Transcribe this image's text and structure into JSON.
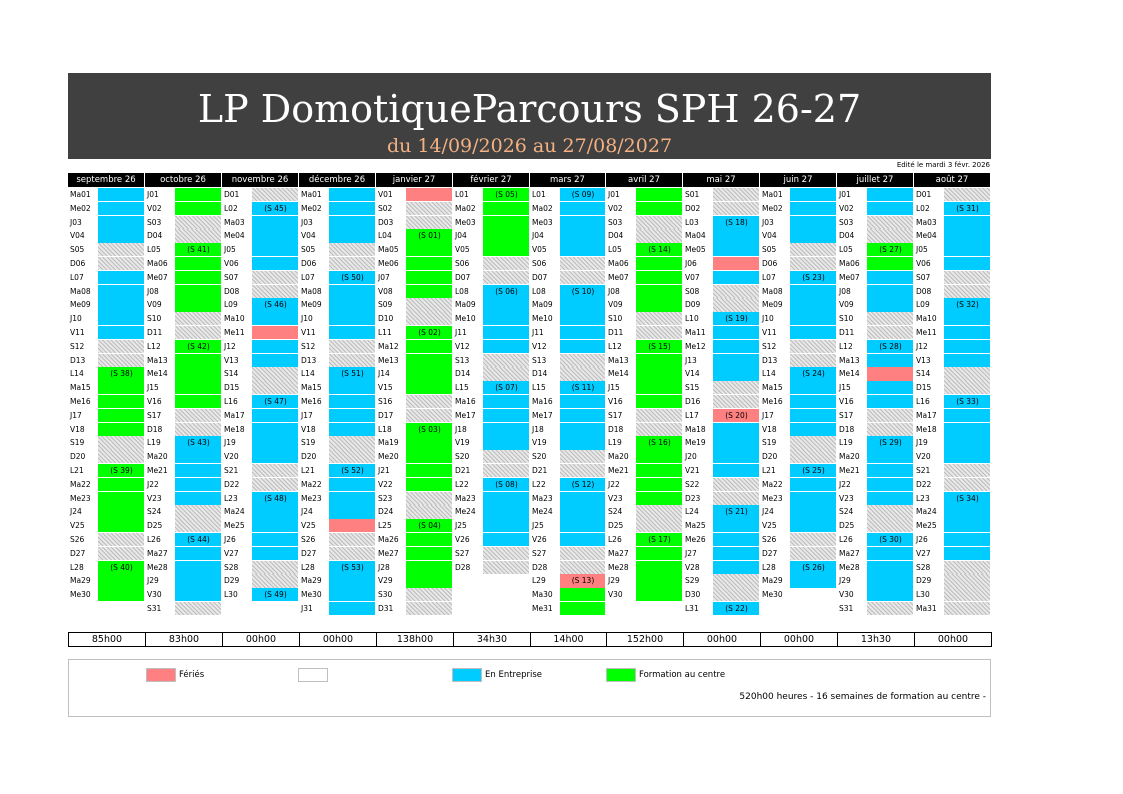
{
  "header": {
    "title": "LP DomotiqueParcours SPH 26-27",
    "subtitle": "du 14/09/2026 au 27/08/2027",
    "edit_date": "Edité le mardi 3 févr. 2026"
  },
  "colors": {
    "entreprise": "#00ccff",
    "formation": "#00ff00",
    "feries": "#ff8080",
    "banner": "#404040",
    "weekend_hatch": "#bdbdbd"
  },
  "months": [
    {
      "name": "septembre 26",
      "total": "85h00",
      "days": [
        "Ma01",
        "Me02",
        "J03",
        "V04",
        "S05",
        "D06",
        "L07",
        "Ma08",
        "Me09",
        "J10",
        "V11",
        "S12",
        "D13",
        "L14",
        "Ma15",
        "Me16",
        "J17",
        "V18",
        "S19",
        "D20",
        "L21",
        "Ma22",
        "Me23",
        "J24",
        "V25",
        "S26",
        "D27",
        "L28",
        "Ma29",
        "Me30"
      ],
      "status": [
        "e",
        "e",
        "e",
        "e",
        "w",
        "w",
        "e",
        "e",
        "e",
        "e",
        "e",
        "w",
        "w",
        "f",
        "f",
        "f",
        "f",
        "f",
        "w",
        "w",
        "f",
        "f",
        "f",
        "f",
        "f",
        "w",
        "w",
        "f",
        "f",
        "f"
      ],
      "weeks": [
        {
          "day": 14,
          "label": "(S 38)"
        },
        {
          "day": 21,
          "label": "(S 39)"
        },
        {
          "day": 28,
          "label": "(S 40)"
        }
      ]
    },
    {
      "name": "octobre 26",
      "total": "83h00",
      "days": [
        "J01",
        "V02",
        "S03",
        "D04",
        "L05",
        "Ma06",
        "Me07",
        "J08",
        "V09",
        "S10",
        "D11",
        "L12",
        "Ma13",
        "Me14",
        "J15",
        "V16",
        "S17",
        "D18",
        "L19",
        "Ma20",
        "Me21",
        "J22",
        "V23",
        "S24",
        "D25",
        "L26",
        "Ma27",
        "Me28",
        "J29",
        "V30",
        "S31"
      ],
      "status": [
        "f",
        "f",
        "w",
        "w",
        "f",
        "f",
        "f",
        "f",
        "f",
        "w",
        "w",
        "f",
        "f",
        "f",
        "f",
        "f",
        "w",
        "w",
        "e",
        "e",
        "e",
        "e",
        "e",
        "w",
        "w",
        "e",
        "e",
        "e",
        "e",
        "e",
        "w"
      ],
      "weeks": [
        {
          "day": 5,
          "label": "(S 41)"
        },
        {
          "day": 12,
          "label": "(S 42)"
        },
        {
          "day": 19,
          "label": "(S 43)"
        },
        {
          "day": 26,
          "label": "(S 44)"
        }
      ]
    },
    {
      "name": "novembre 26",
      "total": "00h00",
      "days": [
        "D01",
        "L02",
        "Ma03",
        "Me04",
        "J05",
        "V06",
        "S07",
        "D08",
        "L09",
        "Ma10",
        "Me11",
        "J12",
        "V13",
        "S14",
        "D15",
        "L16",
        "Ma17",
        "Me18",
        "J19",
        "V20",
        "S21",
        "D22",
        "L23",
        "Ma24",
        "Me25",
        "J26",
        "V27",
        "S28",
        "D29",
        "L30"
      ],
      "status": [
        "w",
        "e",
        "e",
        "e",
        "e",
        "e",
        "w",
        "w",
        "e",
        "e",
        "h",
        "e",
        "e",
        "w",
        "w",
        "e",
        "e",
        "e",
        "e",
        "e",
        "w",
        "w",
        "e",
        "e",
        "e",
        "e",
        "e",
        "w",
        "w",
        "e"
      ],
      "weeks": [
        {
          "day": 2,
          "label": "(S 45)"
        },
        {
          "day": 9,
          "label": "(S 46)"
        },
        {
          "day": 16,
          "label": "(S 47)"
        },
        {
          "day": 23,
          "label": "(S 48)"
        },
        {
          "day": 30,
          "label": "(S 49)"
        }
      ]
    },
    {
      "name": "décembre 26",
      "total": "00h00",
      "days": [
        "Ma01",
        "Me02",
        "J03",
        "V04",
        "S05",
        "D06",
        "L07",
        "Ma08",
        "Me09",
        "J10",
        "V11",
        "S12",
        "D13",
        "L14",
        "Ma15",
        "Me16",
        "J17",
        "V18",
        "S19",
        "D20",
        "L21",
        "Ma22",
        "Me23",
        "J24",
        "V25",
        "S26",
        "D27",
        "L28",
        "Ma29",
        "Me30",
        "J31"
      ],
      "status": [
        "e",
        "e",
        "e",
        "e",
        "w",
        "w",
        "e",
        "e",
        "e",
        "e",
        "e",
        "w",
        "w",
        "e",
        "e",
        "e",
        "e",
        "e",
        "w",
        "w",
        "e",
        "e",
        "e",
        "e",
        "h",
        "w",
        "w",
        "e",
        "e",
        "e",
        "e"
      ],
      "weeks": [
        {
          "day": 7,
          "label": "(S 50)"
        },
        {
          "day": 14,
          "label": "(S 51)"
        },
        {
          "day": 21,
          "label": "(S 52)"
        },
        {
          "day": 28,
          "label": "(S 53)"
        }
      ]
    },
    {
      "name": "janvier 27",
      "total": "138h00",
      "days": [
        "V01",
        "S02",
        "D03",
        "L04",
        "Ma05",
        "Me06",
        "J07",
        "V08",
        "S09",
        "D10",
        "L11",
        "Ma12",
        "Me13",
        "J14",
        "V15",
        "S16",
        "D17",
        "L18",
        "Ma19",
        "Me20",
        "J21",
        "V22",
        "S23",
        "D24",
        "L25",
        "Ma26",
        "Me27",
        "J28",
        "V29",
        "S30",
        "D31"
      ],
      "status": [
        "h",
        "w",
        "w",
        "f",
        "f",
        "f",
        "f",
        "f",
        "w",
        "w",
        "f",
        "f",
        "f",
        "f",
        "f",
        "w",
        "w",
        "f",
        "f",
        "f",
        "f",
        "f",
        "w",
        "w",
        "f",
        "f",
        "f",
        "f",
        "f",
        "w",
        "w"
      ],
      "weeks": [
        {
          "day": 4,
          "label": "(S 01)"
        },
        {
          "day": 11,
          "label": "(S 02)"
        },
        {
          "day": 18,
          "label": "(S 03)"
        },
        {
          "day": 25,
          "label": "(S 04)"
        }
      ]
    },
    {
      "name": "février 27",
      "total": "34h30",
      "days": [
        "L01",
        "Ma02",
        "Me03",
        "J04",
        "V05",
        "S06",
        "D07",
        "L08",
        "Ma09",
        "Me10",
        "J11",
        "V12",
        "S13",
        "D14",
        "L15",
        "Ma16",
        "Me17",
        "J18",
        "V19",
        "S20",
        "D21",
        "L22",
        "Ma23",
        "Me24",
        "J25",
        "V26",
        "S27",
        "D28"
      ],
      "status": [
        "f",
        "f",
        "f",
        "f",
        "f",
        "w",
        "w",
        "e",
        "e",
        "e",
        "e",
        "e",
        "w",
        "w",
        "e",
        "e",
        "e",
        "e",
        "e",
        "w",
        "w",
        "e",
        "e",
        "e",
        "e",
        "e",
        "w",
        "w"
      ],
      "weeks": [
        {
          "day": 1,
          "label": "(S 05)"
        },
        {
          "day": 8,
          "label": "(S 06)"
        },
        {
          "day": 15,
          "label": "(S 07)"
        },
        {
          "day": 22,
          "label": "(S 08)"
        }
      ]
    },
    {
      "name": "mars 27",
      "total": "14h00",
      "days": [
        "L01",
        "Ma02",
        "Me03",
        "J04",
        "V05",
        "S06",
        "D07",
        "L08",
        "Ma09",
        "Me10",
        "J11",
        "V12",
        "S13",
        "D14",
        "L15",
        "Ma16",
        "Me17",
        "J18",
        "V19",
        "S20",
        "D21",
        "L22",
        "Ma23",
        "Me24",
        "J25",
        "V26",
        "S27",
        "D28",
        "L29",
        "Ma30",
        "Me31"
      ],
      "status": [
        "e",
        "e",
        "e",
        "e",
        "e",
        "w",
        "w",
        "e",
        "e",
        "e",
        "e",
        "e",
        "w",
        "w",
        "e",
        "e",
        "e",
        "e",
        "e",
        "w",
        "w",
        "e",
        "e",
        "e",
        "e",
        "e",
        "w",
        "w",
        "h",
        "f",
        "f"
      ],
      "weeks": [
        {
          "day": 1,
          "label": "(S 09)"
        },
        {
          "day": 8,
          "label": "(S 10)"
        },
        {
          "day": 15,
          "label": "(S 11)"
        },
        {
          "day": 22,
          "label": "(S 12)"
        },
        {
          "day": 29,
          "label": "(S 13)"
        }
      ]
    },
    {
      "name": "avril 27",
      "total": "152h00",
      "days": [
        "J01",
        "V02",
        "S03",
        "D04",
        "L05",
        "Ma06",
        "Me07",
        "J08",
        "V09",
        "S10",
        "D11",
        "L12",
        "Ma13",
        "Me14",
        "J15",
        "V16",
        "S17",
        "D18",
        "L19",
        "Ma20",
        "Me21",
        "J22",
        "V23",
        "S24",
        "D25",
        "L26",
        "Ma27",
        "Me28",
        "J29",
        "V30"
      ],
      "status": [
        "f",
        "f",
        "w",
        "w",
        "f",
        "f",
        "f",
        "f",
        "f",
        "w",
        "w",
        "f",
        "f",
        "f",
        "f",
        "f",
        "w",
        "w",
        "f",
        "f",
        "f",
        "f",
        "f",
        "w",
        "w",
        "f",
        "f",
        "f",
        "f",
        "f"
      ],
      "weeks": [
        {
          "day": 5,
          "label": "(S 14)"
        },
        {
          "day": 12,
          "label": "(S 15)"
        },
        {
          "day": 19,
          "label": "(S 16)"
        },
        {
          "day": 26,
          "label": "(S 17)"
        }
      ]
    },
    {
      "name": "mai 27",
      "total": "00h00",
      "days": [
        "S01",
        "D02",
        "L03",
        "Ma04",
        "Me05",
        "J06",
        "V07",
        "S08",
        "D09",
        "L10",
        "Ma11",
        "Me12",
        "J13",
        "V14",
        "S15",
        "D16",
        "L17",
        "Ma18",
        "Me19",
        "J20",
        "V21",
        "S22",
        "D23",
        "L24",
        "Ma25",
        "Me26",
        "J27",
        "V28",
        "S29",
        "D30",
        "L31"
      ],
      "status": [
        "w",
        "w",
        "e",
        "e",
        "e",
        "h",
        "e",
        "w",
        "w",
        "e",
        "e",
        "e",
        "e",
        "e",
        "w",
        "w",
        "h",
        "e",
        "e",
        "e",
        "e",
        "w",
        "w",
        "e",
        "e",
        "e",
        "e",
        "e",
        "w",
        "w",
        "e"
      ],
      "weeks": [
        {
          "day": 3,
          "label": "(S 18)"
        },
        {
          "day": 10,
          "label": "(S 19)"
        },
        {
          "day": 17,
          "label": "(S 20)"
        },
        {
          "day": 24,
          "label": "(S 21)"
        },
        {
          "day": 31,
          "label": "(S 22)"
        }
      ]
    },
    {
      "name": "juin 27",
      "total": "00h00",
      "days": [
        "Ma01",
        "Me02",
        "J03",
        "V04",
        "S05",
        "D06",
        "L07",
        "Ma08",
        "Me09",
        "J10",
        "V11",
        "S12",
        "D13",
        "L14",
        "Ma15",
        "Me16",
        "J17",
        "V18",
        "S19",
        "D20",
        "L21",
        "Ma22",
        "Me23",
        "J24",
        "V25",
        "S26",
        "D27",
        "L28",
        "Ma29",
        "Me30"
      ],
      "status": [
        "e",
        "e",
        "e",
        "e",
        "w",
        "w",
        "e",
        "e",
        "e",
        "e",
        "e",
        "w",
        "w",
        "e",
        "e",
        "e",
        "e",
        "e",
        "w",
        "w",
        "e",
        "e",
        "e",
        "e",
        "e",
        "w",
        "w",
        "e",
        "e",
        "b"
      ],
      "weeks": [
        {
          "day": 7,
          "label": "(S 23)"
        },
        {
          "day": 14,
          "label": "(S 24)"
        },
        {
          "day": 21,
          "label": "(S 25)"
        },
        {
          "day": 28,
          "label": "(S 26)"
        }
      ]
    },
    {
      "name": "juillet 27",
      "total": "13h30",
      "days": [
        "J01",
        "V02",
        "S03",
        "D04",
        "L05",
        "Ma06",
        "Me07",
        "J08",
        "V09",
        "S10",
        "D11",
        "L12",
        "Ma13",
        "Me14",
        "J15",
        "V16",
        "S17",
        "D18",
        "L19",
        "Ma20",
        "Me21",
        "J22",
        "V23",
        "S24",
        "D25",
        "L26",
        "Ma27",
        "Me28",
        "J29",
        "V30",
        "S31"
      ],
      "status": [
        "e",
        "e",
        "w",
        "w",
        "f",
        "f",
        "e",
        "e",
        "e",
        "w",
        "w",
        "e",
        "e",
        "h",
        "e",
        "e",
        "w",
        "w",
        "e",
        "e",
        "e",
        "e",
        "e",
        "w",
        "w",
        "e",
        "e",
        "e",
        "e",
        "e",
        "w"
      ],
      "weeks": [
        {
          "day": 5,
          "label": "(S 27)"
        },
        {
          "day": 12,
          "label": "(S 28)"
        },
        {
          "day": 19,
          "label": "(S 29)"
        },
        {
          "day": 26,
          "label": "(S 30)"
        }
      ]
    },
    {
      "name": "août 27",
      "total": "00h00",
      "days": [
        "D01",
        "L02",
        "Ma03",
        "Me04",
        "J05",
        "V06",
        "S07",
        "D08",
        "L09",
        "Ma10",
        "Me11",
        "J12",
        "V13",
        "S14",
        "D15",
        "L16",
        "Ma17",
        "Me18",
        "J19",
        "V20",
        "S21",
        "D22",
        "L23",
        "Ma24",
        "Me25",
        "J26",
        "V27",
        "S28",
        "D29",
        "L30",
        "Ma31"
      ],
      "status": [
        "w",
        "e",
        "e",
        "e",
        "e",
        "e",
        "w",
        "w",
        "e",
        "e",
        "e",
        "e",
        "e",
        "w",
        "w",
        "e",
        "e",
        "e",
        "e",
        "e",
        "w",
        "w",
        "e",
        "e",
        "e",
        "e",
        "e",
        "w",
        "w",
        "w",
        "w"
      ],
      "weeks": [
        {
          "day": 2,
          "label": "(S 31)"
        },
        {
          "day": 9,
          "label": "(S 32)"
        },
        {
          "day": 16,
          "label": "(S 33)"
        },
        {
          "day": 23,
          "label": "(S 34)"
        }
      ]
    }
  ],
  "legend": {
    "items": [
      {
        "key": "h",
        "label": "Fériés",
        "color": "#ff8080"
      },
      {
        "key": "b",
        "label": "",
        "color": "#ffffff"
      },
      {
        "key": "e",
        "label": "En Entreprise",
        "color": "#00ccff"
      },
      {
        "key": "f",
        "label": "Formation au centre",
        "color": "#00ff00"
      }
    ],
    "summary": "520h00 heures - 16 semaines de formation au centre -"
  }
}
